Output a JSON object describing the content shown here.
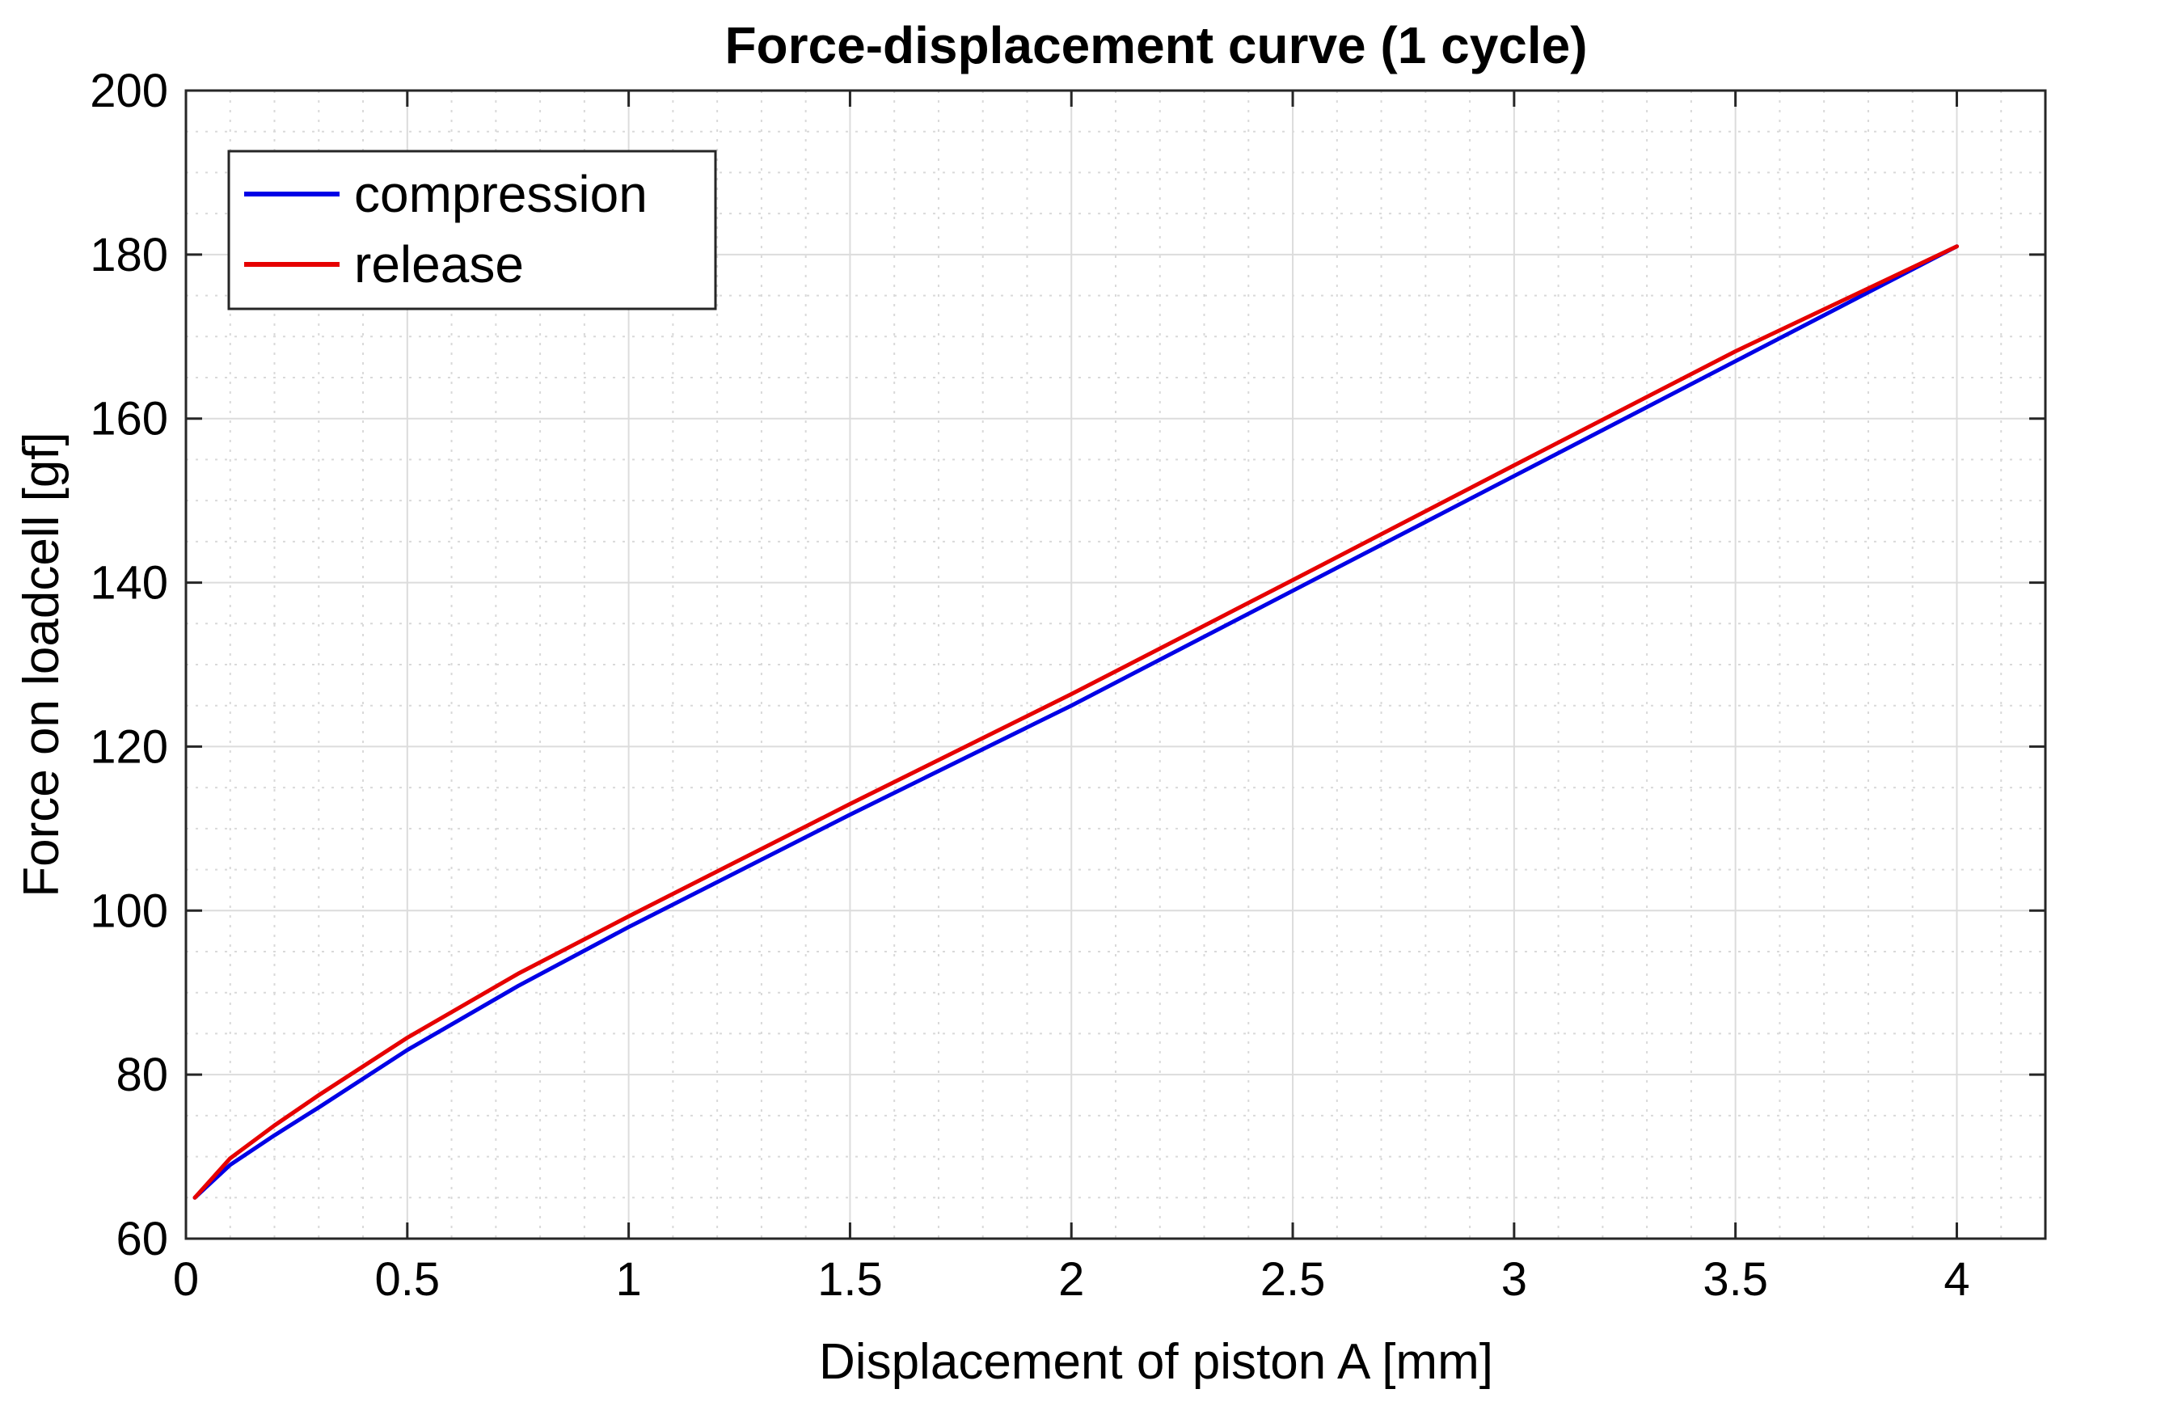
{
  "chart_data": {
    "type": "line",
    "title": "Force-displacement curve (1 cycle)",
    "xlabel": "Displacement of piston A [mm]",
    "ylabel": "Force on loadcell [gf]",
    "xlim": [
      0,
      4.2
    ],
    "ylim": [
      60,
      200
    ],
    "xticks": [
      0,
      0.5,
      1,
      1.5,
      2,
      2.5,
      3,
      3.5,
      4
    ],
    "xtick_labels": [
      "0",
      "0.5",
      "1",
      "1.5",
      "2",
      "2.5",
      "3",
      "3.5",
      "4"
    ],
    "yticks": [
      60,
      80,
      100,
      120,
      140,
      160,
      180,
      200
    ],
    "ytick_labels": [
      "60",
      "80",
      "100",
      "120",
      "140",
      "160",
      "180",
      "200"
    ],
    "grid": true,
    "legend_position": "top-left",
    "series": [
      {
        "name": "compression",
        "color": "#0000e6",
        "x": [
          0.02,
          0.1,
          0.2,
          0.3,
          0.5,
          0.75,
          1.0,
          1.5,
          2.0,
          2.5,
          3.0,
          3.5,
          4.0
        ],
        "y": [
          65,
          69,
          72.6,
          76,
          83,
          90.8,
          98,
          111.7,
          125,
          139,
          153,
          167,
          181
        ]
      },
      {
        "name": "release",
        "color": "#e60000",
        "x": [
          0.02,
          0.1,
          0.2,
          0.3,
          0.5,
          0.75,
          1.0,
          1.5,
          2.0,
          2.5,
          3.0,
          3.5,
          4.0
        ],
        "y": [
          65,
          69.8,
          73.8,
          77.5,
          84.5,
          92.3,
          99.3,
          113,
          126.4,
          140.3,
          154.3,
          168.2,
          181
        ]
      }
    ]
  }
}
